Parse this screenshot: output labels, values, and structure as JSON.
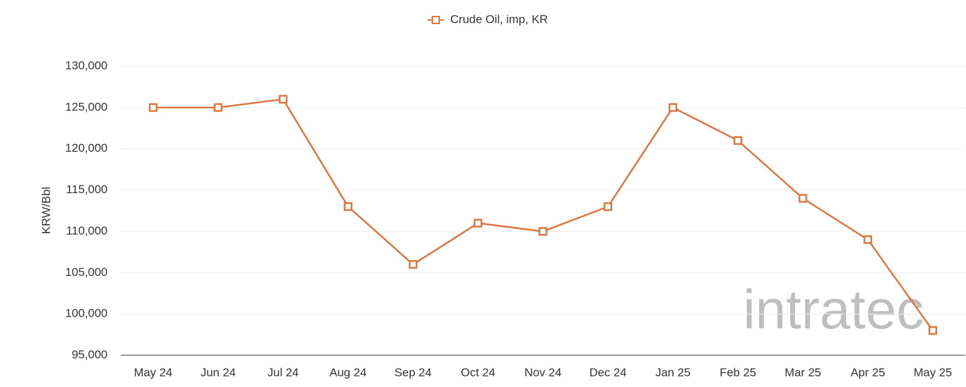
{
  "chart_data": {
    "type": "line",
    "categories": [
      "May 24",
      "Jun 24",
      "Jul 24",
      "Aug 24",
      "Sep 24",
      "Oct 24",
      "Nov 24",
      "Dec 24",
      "Jan 25",
      "Feb 25",
      "Mar 25",
      "Apr 25",
      "May 25"
    ],
    "series": [
      {
        "name": "Crude Oil, imp, KR",
        "color": "#d9773f",
        "values": [
          125000,
          125000,
          126000,
          113000,
          106000,
          111000,
          110000,
          113000,
          125000,
          121000,
          114000,
          109000,
          98000
        ]
      }
    ],
    "ylabel": "KRW/Bbl",
    "ylim": [
      95000,
      130000
    ],
    "yticks": [
      {
        "value": 95000,
        "label": "95,000"
      },
      {
        "value": 100000,
        "label": "100,000"
      },
      {
        "value": 105000,
        "label": "105,000"
      },
      {
        "value": 110000,
        "label": "110,000"
      },
      {
        "value": 115000,
        "label": "115,000"
      },
      {
        "value": 120000,
        "label": "120,000"
      },
      {
        "value": 125000,
        "label": "125,000"
      },
      {
        "value": 130000,
        "label": "130,000"
      }
    ],
    "grid": true,
    "legend": "top",
    "watermark": "intratec"
  }
}
